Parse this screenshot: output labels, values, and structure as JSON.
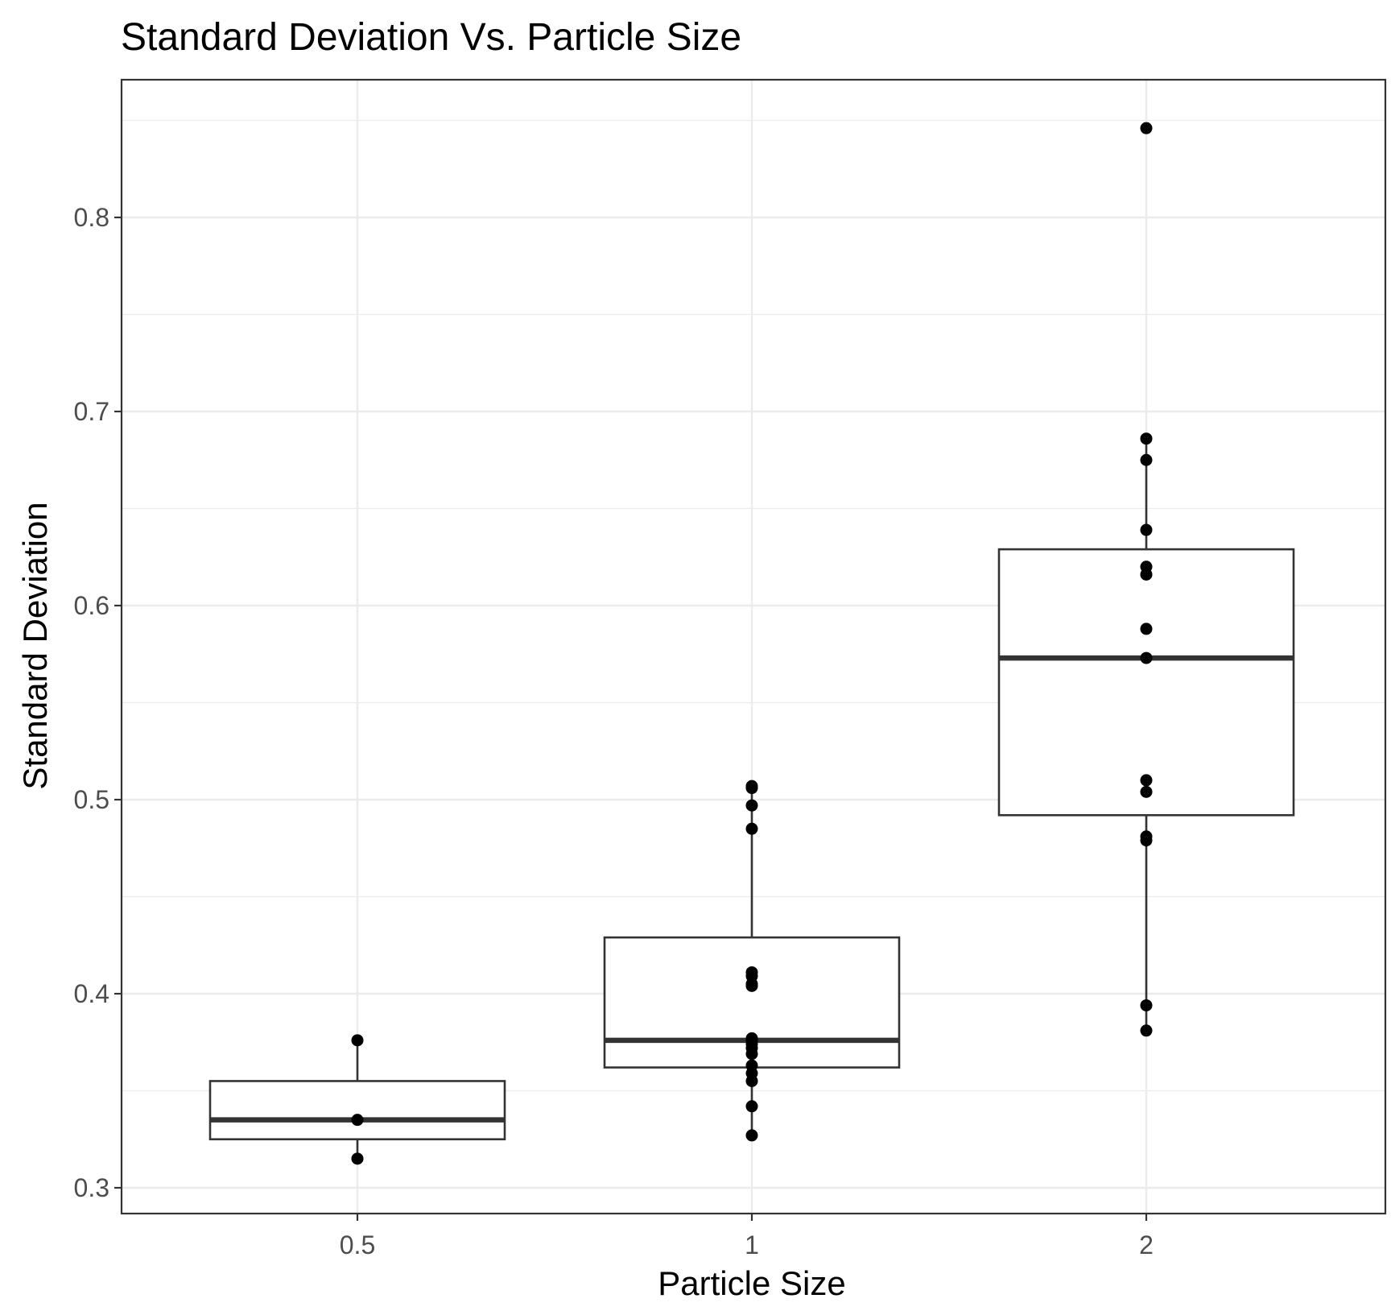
{
  "chart_data": {
    "type": "box",
    "title": "Standard Deviation Vs. Particle Size",
    "xlabel": "Particle Size",
    "ylabel": "Standard Deviation",
    "categories": [
      "0.5",
      "1",
      "2"
    ],
    "ylim": [
      0.288,
      0.873
    ],
    "yticks": [
      {
        "value": 0.3,
        "label": "0.3"
      },
      {
        "value": 0.4,
        "label": "0.4"
      },
      {
        "value": 0.5,
        "label": "0.5"
      },
      {
        "value": 0.6,
        "label": "0.6"
      },
      {
        "value": 0.7,
        "label": "0.7"
      },
      {
        "value": 0.8,
        "label": "0.8"
      }
    ],
    "grid": true,
    "boxes": [
      {
        "category": "0.5",
        "lower_whisker": 0.315,
        "q1": 0.325,
        "median": 0.335,
        "q3": 0.355,
        "upper_whisker": 0.376
      },
      {
        "category": "1",
        "lower_whisker": 0.327,
        "q1": 0.362,
        "median": 0.376,
        "q3": 0.429,
        "upper_whisker": 0.507
      },
      {
        "category": "2",
        "lower_whisker": 0.381,
        "q1": 0.492,
        "median": 0.573,
        "q3": 0.629,
        "upper_whisker": 0.686
      }
    ],
    "points": [
      {
        "category": "0.5",
        "values": [
          0.376,
          0.335,
          0.315
        ]
      },
      {
        "category": "1",
        "values": [
          0.507,
          0.506,
          0.497,
          0.485,
          0.411,
          0.409,
          0.405,
          0.404,
          0.377,
          0.376,
          0.374,
          0.372,
          0.369,
          0.363,
          0.359,
          0.355,
          0.342,
          0.327
        ]
      },
      {
        "category": "2",
        "values": [
          0.846,
          0.686,
          0.675,
          0.639,
          0.62,
          0.616,
          0.588,
          0.573,
          0.51,
          0.504,
          0.481,
          0.479,
          0.394,
          0.381
        ]
      }
    ]
  }
}
